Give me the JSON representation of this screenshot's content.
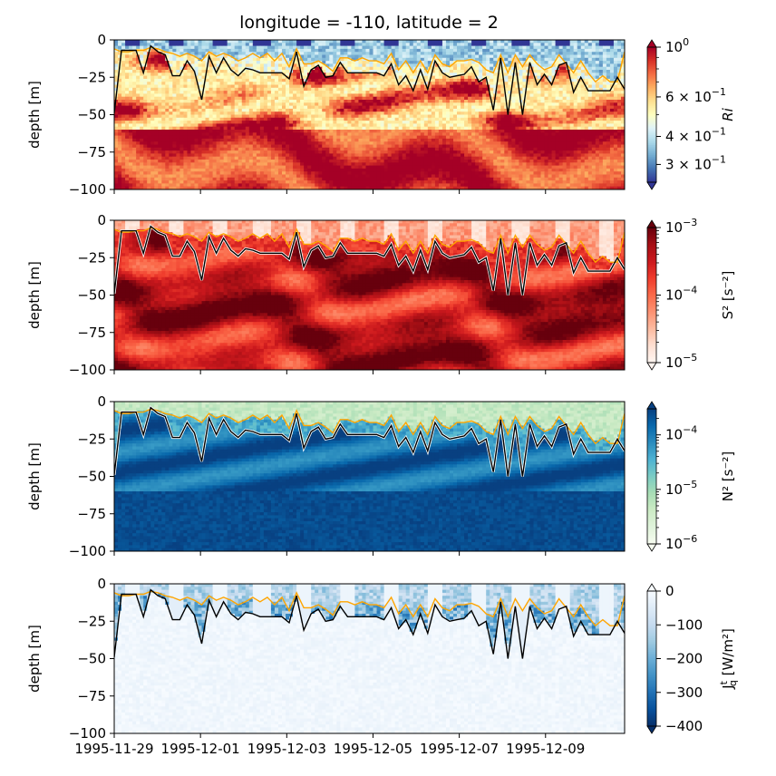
{
  "figure": {
    "title": "longitude = -110, latitude = 2"
  },
  "chart_data": [
    {
      "type": "heatmap",
      "variable": "Ri",
      "ylabel": "depth [m]",
      "ylim": [
        -100,
        0
      ],
      "yticks": [
        "0",
        "−25",
        "−50",
        "−75",
        "−100"
      ],
      "colorbar": {
        "label": "Ri",
        "scale": "log",
        "range": [
          0.25,
          1.0
        ],
        "colormap": "RdYlBu_r",
        "ticks": [
          {
            "value": 1.0,
            "base": "10",
            "exp": "0",
            "mant": ""
          },
          {
            "value": 0.6,
            "base": "10",
            "exp": "−1",
            "mant": "6 × "
          },
          {
            "value": 0.4,
            "base": "10",
            "exp": "−1",
            "mant": "4 × "
          },
          {
            "value": 0.3,
            "base": "10",
            "exp": "−1",
            "mant": "3 × "
          }
        ],
        "extend": "both"
      }
    },
    {
      "type": "heatmap",
      "variable": "S²",
      "ylabel": "depth [m]",
      "ylim": [
        -100,
        0
      ],
      "yticks": [
        "0",
        "−25",
        "−50",
        "−75",
        "−100"
      ],
      "colorbar": {
        "label": "S² [s⁻²]",
        "scale": "log",
        "range": [
          1e-05,
          0.001
        ],
        "colormap": "Reds",
        "ticks": [
          {
            "value": 0.001,
            "base": "10",
            "exp": "−3",
            "mant": ""
          },
          {
            "value": 0.0001,
            "base": "10",
            "exp": "−4",
            "mant": ""
          },
          {
            "value": 1e-05,
            "base": "10",
            "exp": "−5",
            "mant": ""
          }
        ],
        "extend": "both"
      }
    },
    {
      "type": "heatmap",
      "variable": "N²",
      "ylabel": "depth [m]",
      "ylim": [
        -100,
        0
      ],
      "yticks": [
        "0",
        "−25",
        "−50",
        "−75",
        "−100"
      ],
      "colorbar": {
        "label": "N² [s⁻²]",
        "scale": "log",
        "range": [
          1e-06,
          0.0003
        ],
        "colormap": "GnBu",
        "ticks": [
          {
            "value": 0.0001,
            "base": "10",
            "exp": "−4",
            "mant": ""
          },
          {
            "value": 1e-05,
            "base": "10",
            "exp": "−5",
            "mant": ""
          },
          {
            "value": 1e-06,
            "base": "10",
            "exp": "−6",
            "mant": ""
          }
        ],
        "extend": "both"
      }
    },
    {
      "type": "heatmap",
      "variable": "Jq",
      "ylabel": "depth [m]",
      "ylim": [
        -100,
        0
      ],
      "yticks": [
        "0",
        "−25",
        "−50",
        "−75",
        "−100"
      ],
      "xticks": [
        "1995-11-29",
        "1995-12-01",
        "1995-12-03",
        "1995-12-05",
        "1995-12-07",
        "1995-12-09"
      ],
      "colorbar": {
        "label": "J",
        "label_sub": "q",
        "label_sup": "t",
        "label_unit": " [W/m²]",
        "scale": "linear",
        "range": [
          -400,
          0
        ],
        "colormap": "Blues_r",
        "ticks": [
          {
            "value": 0,
            "text": "0"
          },
          {
            "value": -100,
            "text": "−100"
          },
          {
            "value": -200,
            "text": "−200"
          },
          {
            "value": -300,
            "text": "−300"
          },
          {
            "value": -400,
            "text": "−400"
          }
        ],
        "extend": "both"
      }
    }
  ],
  "x_dates": {
    "start": "1995-11-29",
    "end": "1995-12-10T20:00",
    "ticks": [
      "1995-11-29",
      "1995-12-01",
      "1995-12-03",
      "1995-12-05",
      "1995-12-07",
      "1995-12-09"
    ]
  },
  "lines": {
    "mld_black": {
      "color": "#000000",
      "depths": [
        -49,
        -7,
        -7,
        -7,
        -22,
        -4,
        -8,
        -10,
        -24,
        -24,
        -14,
        -21,
        -40,
        -11,
        -22,
        -12,
        -20,
        -24,
        -19,
        -20,
        -22,
        -22,
        -22,
        -22,
        -26,
        -8,
        -31,
        -20,
        -17,
        -25,
        -24,
        -15,
        -22,
        -22,
        -22,
        -22,
        -22,
        -24,
        -16,
        -30,
        -24,
        -34,
        -20,
        -33,
        -14,
        -22,
        -25,
        -24,
        -23,
        -18,
        -28,
        -25,
        -47,
        -12,
        -50,
        -15,
        -50,
        -15,
        -30,
        -23,
        -30,
        -17,
        -15,
        -35,
        -25,
        -34,
        -34,
        -34,
        -34,
        -25,
        -33
      ]
    },
    "ild_orange": {
      "color": "#ffa500",
      "depths": [
        -6,
        -8,
        -8,
        -7,
        -7,
        -5,
        -6,
        -8,
        -9,
        -11,
        -9,
        -11,
        -14,
        -8,
        -11,
        -9,
        -11,
        -14,
        -12,
        -9,
        -12,
        -9,
        -14,
        -9,
        -18,
        -6,
        -16,
        -16,
        -14,
        -17,
        -21,
        -12,
        -12,
        -14,
        -12,
        -14,
        -14,
        -16,
        -9,
        -20,
        -14,
        -22,
        -14,
        -22,
        -10,
        -16,
        -18,
        -14,
        -14,
        -13,
        -15,
        -20,
        -22,
        -10,
        -22,
        -10,
        -18,
        -10,
        -16,
        -20,
        -18,
        -10,
        -16,
        -22,
        -14,
        -22,
        -28,
        -24,
        -28,
        -28,
        -8
      ]
    }
  }
}
